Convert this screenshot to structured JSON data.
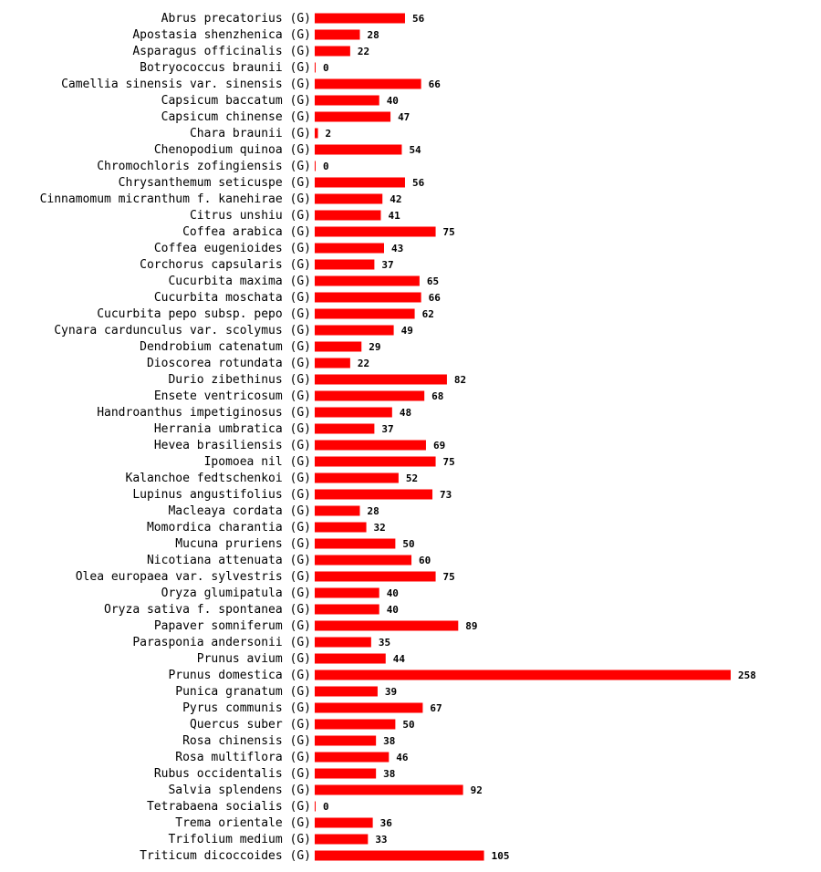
{
  "chart_data": {
    "type": "bar",
    "orientation": "horizontal",
    "title": "",
    "xlabel": "",
    "ylabel": "",
    "bar_color": "#ff0000",
    "categories": [
      "Abrus precatorius (G)",
      "Apostasia shenzhenica (G)",
      "Asparagus officinalis (G)",
      "Botryococcus braunii (G)",
      "Camellia sinensis var. sinensis (G)",
      "Capsicum baccatum (G)",
      "Capsicum chinense (G)",
      "Chara braunii (G)",
      "Chenopodium quinoa (G)",
      "Chromochloris zofingiensis (G)",
      "Chrysanthemum seticuspe (G)",
      "Cinnamomum micranthum f. kanehirae (G)",
      "Citrus unshiu (G)",
      "Coffea arabica (G)",
      "Coffea eugenioides (G)",
      "Corchorus capsularis (G)",
      "Cucurbita maxima (G)",
      "Cucurbita moschata (G)",
      "Cucurbita pepo subsp. pepo (G)",
      "Cynara cardunculus var. scolymus (G)",
      "Dendrobium catenatum (G)",
      "Dioscorea rotundata (G)",
      "Durio zibethinus (G)",
      "Ensete ventricosum (G)",
      "Handroanthus impetiginosus (G)",
      "Herrania umbratica (G)",
      "Hevea brasiliensis (G)",
      "Ipomoea nil (G)",
      "Kalanchoe fedtschenkoi (G)",
      "Lupinus angustifolius (G)",
      "Macleaya cordata (G)",
      "Momordica charantia (G)",
      "Mucuna pruriens (G)",
      "Nicotiana attenuata (G)",
      "Olea europaea var. sylvestris (G)",
      "Oryza glumipatula (G)",
      "Oryza sativa f. spontanea (G)",
      "Papaver somniferum (G)",
      "Parasponia andersonii (G)",
      "Prunus avium (G)",
      "Prunus domestica (G)",
      "Punica granatum (G)",
      "Pyrus communis (G)",
      "Quercus suber (G)",
      "Rosa chinensis (G)",
      "Rosa multiflora (G)",
      "Rubus occidentalis (G)",
      "Salvia splendens (G)",
      "Tetrabaena socialis (G)",
      "Trema orientale (G)",
      "Trifolium medium (G)",
      "Triticum dicoccoides (G)"
    ],
    "values": [
      56,
      28,
      22,
      0,
      66,
      40,
      47,
      2,
      54,
      0,
      56,
      42,
      41,
      75,
      43,
      37,
      65,
      66,
      62,
      49,
      29,
      22,
      82,
      68,
      48,
      37,
      69,
      75,
      52,
      73,
      28,
      32,
      50,
      60,
      75,
      40,
      40,
      89,
      35,
      44,
      258,
      39,
      67,
      50,
      38,
      46,
      38,
      92,
      0,
      36,
      33,
      105
    ]
  }
}
